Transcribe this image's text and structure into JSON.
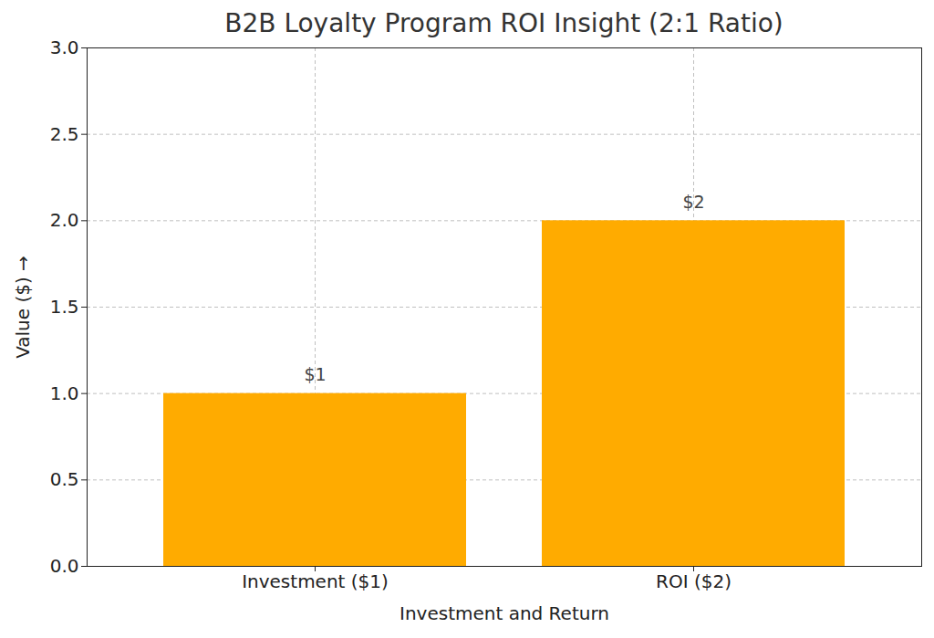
{
  "chart_data": {
    "type": "bar",
    "title": "B2B Loyalty Program ROI Insight (2:1 Ratio)",
    "xlabel": "Investment and Return",
    "ylabel": "Value ($)",
    "categories": [
      "Investment ($1)",
      "ROI ($2)"
    ],
    "values": [
      1,
      2
    ],
    "value_labels": [
      "$1",
      "$2"
    ],
    "data_labels": true,
    "color": "#ffab00",
    "ylim": [
      0,
      3
    ],
    "yticks": [
      {
        "value": 0,
        "label": "0.0"
      },
      0.5,
      {
        "value": 1,
        "label": "1.0"
      },
      1.5,
      {
        "value": 2,
        "label": "2.0"
      },
      2.5,
      {
        "value": 3,
        "label": "3.0"
      }
    ],
    "grid": true
  }
}
